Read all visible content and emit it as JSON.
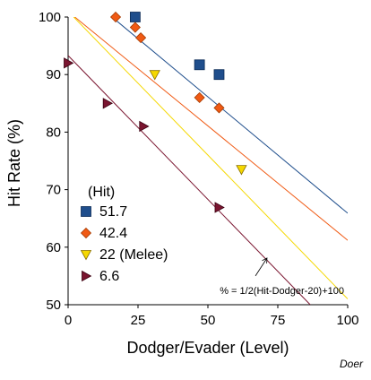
{
  "chart_data": {
    "type": "scatter",
    "xlabel": "Dodger/Evader (Level)",
    "ylabel": "Hit Rate (%)",
    "xlim": [
      0,
      100
    ],
    "ylim": [
      50,
      100
    ],
    "x_ticks": [
      "0",
      "25",
      "50",
      "75",
      "100"
    ],
    "y_ticks": [
      "100",
      "90",
      "80",
      "70",
      "60",
      "50"
    ],
    "grid": false,
    "legend_title": "(Hit)",
    "legend_position": "bottom-left",
    "series": [
      {
        "name": "51.7",
        "color": "#1f4e8c",
        "marker": "square",
        "points": [
          [
            24,
            100
          ],
          [
            47,
            91.7
          ],
          [
            54,
            90
          ]
        ],
        "line": {
          "x": [
            15.7,
            100
          ],
          "y": [
            100,
            65.9
          ]
        }
      },
      {
        "name": "42.4",
        "color": "#f05a14",
        "marker": "diamond",
        "points": [
          [
            17,
            100
          ],
          [
            24,
            98.2
          ],
          [
            26,
            96.4
          ],
          [
            47,
            86
          ],
          [
            54,
            84.2
          ]
        ],
        "line": {
          "x": [
            2.4,
            100
          ],
          "y": [
            100,
            61.2
          ]
        }
      },
      {
        "name": "22 (Melee)",
        "color": "#f5d800",
        "marker": "triangle-down",
        "points": [
          [
            31,
            90
          ],
          [
            62,
            73.5
          ]
        ],
        "line": {
          "x": [
            2,
            100
          ],
          "y": [
            100,
            51
          ]
        }
      },
      {
        "name": "6.6",
        "color": "#7a1530",
        "marker": "triangle-right",
        "points": [
          [
            0,
            92
          ],
          [
            14,
            85
          ],
          [
            27,
            81
          ],
          [
            54,
            66.9
          ]
        ],
        "line": {
          "x": [
            0,
            86.6
          ],
          "y": [
            93.3,
            50
          ]
        }
      }
    ],
    "annotation": {
      "text": "% = 1/2(Hit-Dodger-20)+100",
      "arrow_from": [
        67,
        55
      ],
      "arrow_to": [
        71,
        58
      ]
    },
    "credit": "Doer"
  }
}
